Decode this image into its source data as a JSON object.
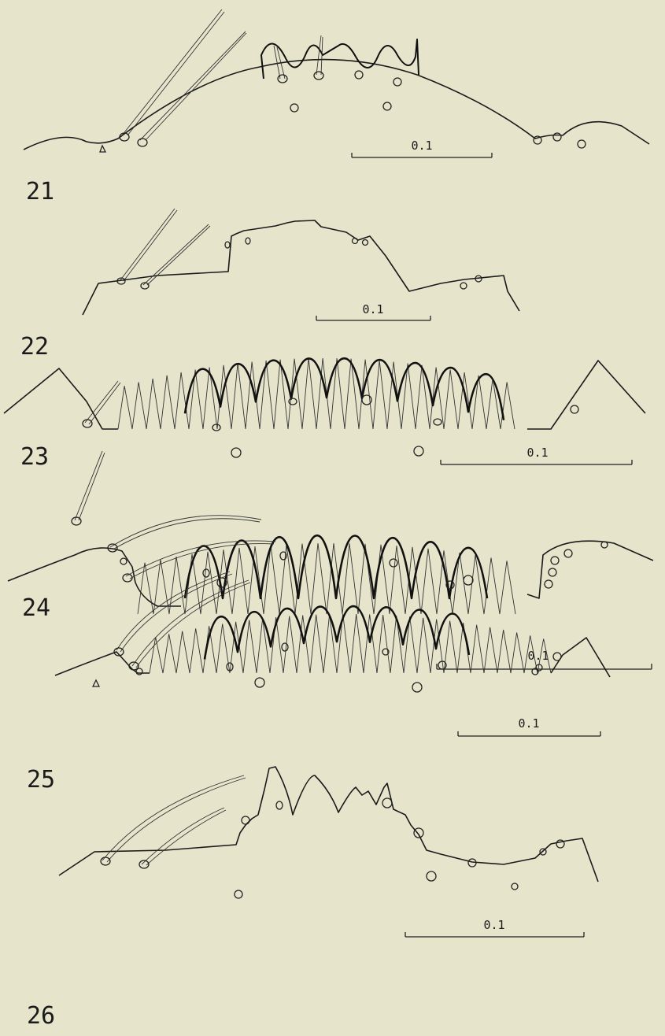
{
  "figures": [
    {
      "number": "21",
      "scale_label": "0.1"
    },
    {
      "number": "22",
      "scale_label": "0.1"
    },
    {
      "number": "23",
      "scale_label": "0.1"
    },
    {
      "number": "24",
      "scale_label": "0.1"
    },
    {
      "number": "25",
      "scale_label": "0.1"
    },
    {
      "number": "26",
      "scale_label": "0.1"
    }
  ]
}
